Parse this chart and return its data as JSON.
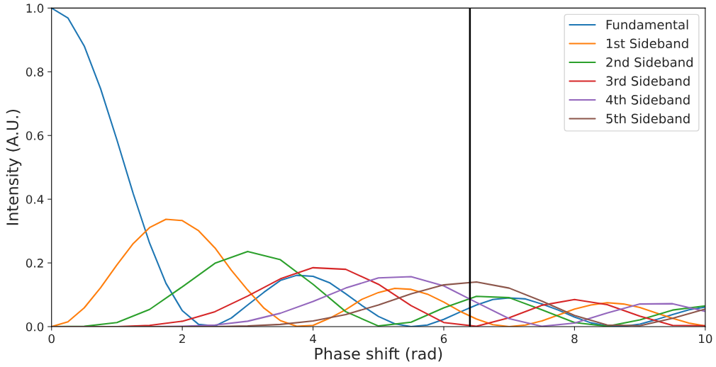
{
  "chart_data": {
    "type": "line",
    "xlabel": "Phase shift (rad)",
    "ylabel": "Intensity (A.U.)",
    "x": [
      0,
      0.5,
      1,
      1.5,
      2,
      2.5,
      3,
      3.5,
      4,
      4.5,
      5,
      5.5,
      6,
      6.5,
      7,
      7.5,
      8,
      8.5,
      9,
      9.5,
      10
    ],
    "series": [
      {
        "name": "Fundamental",
        "color": "#1f77b4",
        "x": [
          0,
          0.25,
          0.5,
          0.75,
          1,
          1.25,
          1.5,
          1.75,
          2,
          2.25,
          2.5,
          2.75,
          3,
          3.25,
          3.5,
          3.75,
          4,
          4.25,
          4.5,
          4.75,
          5,
          5.25,
          5.5,
          5.75,
          6,
          6.25,
          6.5,
          6.75,
          7,
          7.25,
          7.5,
          7.75,
          8,
          8.25,
          8.5,
          8.75,
          9,
          9.25,
          9.5,
          9.75,
          10
        ],
        "values": [
          1,
          0.969,
          0.881,
          0.747,
          0.586,
          0.417,
          0.262,
          0.136,
          0.05,
          0.007,
          0.002,
          0.027,
          0.068,
          0.108,
          0.145,
          0.161,
          0.158,
          0.138,
          0.103,
          0.066,
          0.032,
          0.009,
          0,
          0.005,
          0.023,
          0.046,
          0.068,
          0.085,
          0.09,
          0.087,
          0.071,
          0.052,
          0.03,
          0.012,
          0.002,
          0.001,
          0.008,
          0.022,
          0.038,
          0.053,
          0.061
        ]
      },
      {
        "name": "1st Sideband",
        "color": "#ff7f0e",
        "x": [
          0,
          0.25,
          0.5,
          0.75,
          1,
          1.25,
          1.5,
          1.75,
          2,
          2.25,
          2.5,
          2.75,
          3,
          3.25,
          3.5,
          3.75,
          4,
          4.25,
          4.5,
          4.75,
          5,
          5.25,
          5.5,
          5.75,
          6,
          6.25,
          6.5,
          6.75,
          7,
          7.25,
          7.5,
          7.75,
          8,
          8.25,
          8.5,
          8.75,
          9,
          9.25,
          9.5,
          9.75,
          10
        ],
        "values": [
          0,
          0.015,
          0.059,
          0.122,
          0.194,
          0.261,
          0.311,
          0.337,
          0.333,
          0.301,
          0.247,
          0.177,
          0.115,
          0.058,
          0.019,
          0.001,
          0.004,
          0.026,
          0.053,
          0.086,
          0.107,
          0.12,
          0.117,
          0.102,
          0.077,
          0.048,
          0.024,
          0.006,
          0,
          0.005,
          0.018,
          0.036,
          0.055,
          0.068,
          0.075,
          0.071,
          0.06,
          0.043,
          0.026,
          0.011,
          0.002
        ]
      },
      {
        "name": "2nd Sideband",
        "color": "#2ca02c",
        "values": [
          0,
          0.001,
          0.013,
          0.054,
          0.125,
          0.199,
          0.236,
          0.21,
          0.133,
          0.047,
          0.002,
          0.014,
          0.059,
          0.095,
          0.091,
          0.053,
          0.013,
          0.001,
          0.021,
          0.052,
          0.065
        ]
      },
      {
        "name": "3rd Sideband",
        "color": "#d62728",
        "values": [
          0,
          0,
          0,
          0.004,
          0.017,
          0.047,
          0.096,
          0.15,
          0.185,
          0.18,
          0.133,
          0.066,
          0.013,
          0.001,
          0.028,
          0.067,
          0.085,
          0.069,
          0.033,
          0.004,
          0.003
        ]
      },
      {
        "name": "4th Sideband",
        "color": "#9467bd",
        "values": [
          null,
          null,
          null,
          0,
          0.001,
          0.005,
          0.017,
          0.042,
          0.079,
          0.121,
          0.153,
          0.157,
          0.128,
          0.076,
          0.025,
          0.001,
          0.011,
          0.043,
          0.071,
          0.072,
          0.048
        ]
      },
      {
        "name": "5th Sideband",
        "color": "#8c564b",
        "values": [
          0,
          0,
          0,
          0,
          0,
          0,
          0.002,
          0.007,
          0.018,
          0.038,
          0.068,
          0.103,
          0.131,
          0.14,
          0.121,
          0.08,
          0.035,
          0.005,
          0.003,
          0.026,
          0.055
        ]
      }
    ],
    "xlim": [
      0,
      10
    ],
    "xticks": [
      0,
      2,
      4,
      6,
      8,
      10
    ],
    "ylim": [
      0,
      1
    ],
    "yticks": [
      {
        "value": 0,
        "label": "0.0"
      },
      0.2,
      0.4,
      0.6,
      0.8,
      {
        "value": 1,
        "label": "1.0"
      }
    ],
    "ref_lines": [
      {
        "axis": "x",
        "value": 6.4,
        "color": "#000000"
      }
    ],
    "legend": "top right",
    "grid": false,
    "line_style": "solid"
  }
}
